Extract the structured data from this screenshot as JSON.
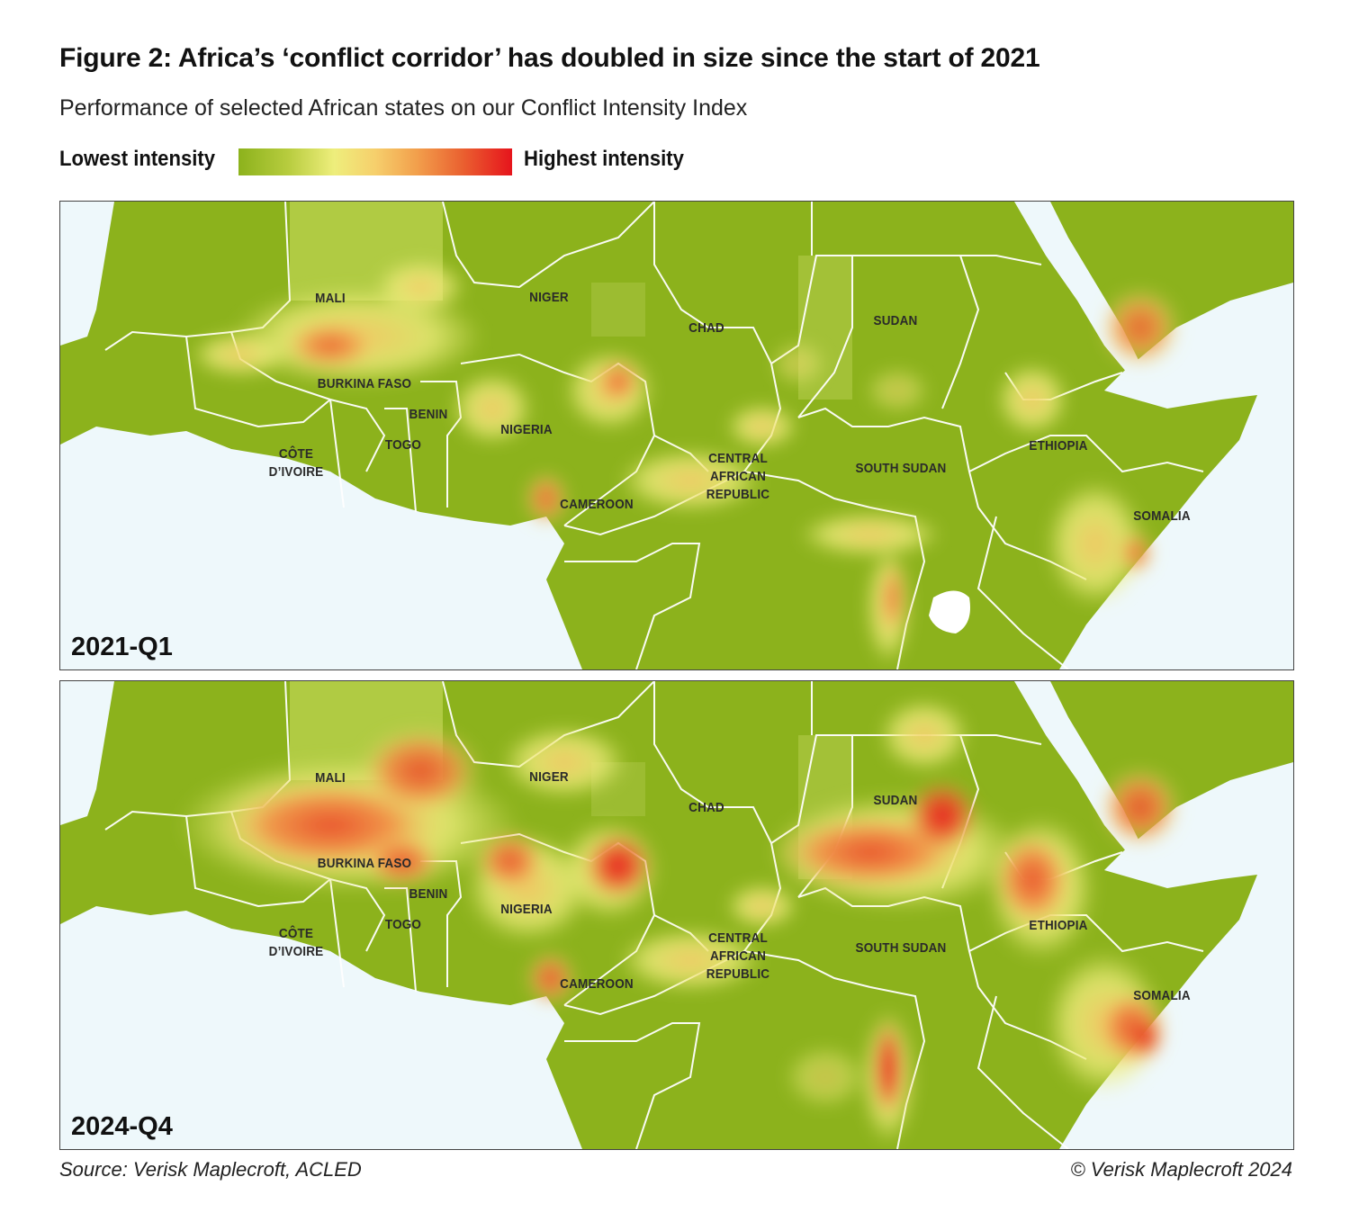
{
  "figure": {
    "title": "Figure 2: Africa’s ‘conflict corridor’ has doubled in size since the start of 2021",
    "subtitle": "Performance of selected African states on our Conflict Intensity Index"
  },
  "legend": {
    "low_label": "Lowest intensity",
    "high_label": "Highest intensity",
    "gradient_colors": [
      "#8cb21c",
      "#b7cc3e",
      "#eeee7c",
      "#f6cf6c",
      "#f2a04c",
      "#ea6030",
      "#e6141c"
    ]
  },
  "colors": {
    "land": "#8cb21c",
    "land_light": "#b4cd48",
    "water": "#eef8fb",
    "border": "#ffffff",
    "low": "#eeee7c",
    "mid": "#f2a04c",
    "high": "#e6141c"
  },
  "countries": {
    "mali": "MALI",
    "niger": "NIGER",
    "chad": "CHAD",
    "sudan": "SUDAN",
    "burkina_faso": "BURKINA FASO",
    "benin": "BENIN",
    "togo": "TOGO",
    "nigeria": "NIGERIA",
    "cote_divoire": "CÔTE D’IVOIRE",
    "cameroon": "CAMEROON",
    "car": "CENTRAL AFRICAN REPUBLIC",
    "south_sudan": "SOUTH SUDAN",
    "ethiopia": "ETHIOPIA",
    "somalia": "SOMALIA"
  },
  "panels": [
    {
      "label": "2021-Q1",
      "intensity": {
        "mali": "medium",
        "burkina_faso": "high",
        "niger": "low",
        "nigeria": "medium",
        "lake_chad": "high",
        "cameroon": "high",
        "car": "medium",
        "sudan": "low",
        "south_sudan": "low",
        "ethiopia": "low",
        "yemen": "high",
        "somalia": "high",
        "dr_congo_east": "high"
      }
    },
    {
      "label": "2024-Q4",
      "intensity": {
        "mali": "high",
        "burkina_faso": "high",
        "niger": "medium",
        "nigeria": "high",
        "lake_chad": "high",
        "cameroon": "high",
        "car": "medium",
        "sudan": "very high",
        "south_sudan": "low",
        "ethiopia": "high",
        "yemen": "high",
        "somalia": "high",
        "dr_congo_east": "very high"
      }
    }
  ],
  "footer": {
    "source": "Source: Verisk Maplecroft, ACLED",
    "copyright": "© Verisk Maplecroft 2024"
  }
}
